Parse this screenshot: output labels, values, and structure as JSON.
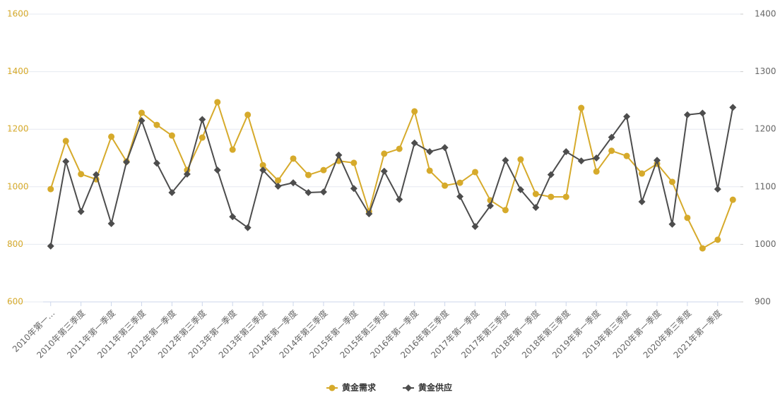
{
  "chart_data": {
    "type": "line",
    "categories": [
      "2010年第一…",
      null,
      "2010年第三季度",
      null,
      "2011年第一季度",
      null,
      "2011年第三季度",
      null,
      "2012年第一季度",
      null,
      "2012年第三季度",
      null,
      "2013年第一季度",
      null,
      "2013年第三季度",
      null,
      "2014年第一季度",
      null,
      "2014年第三季度",
      null,
      "2015年第一季度",
      null,
      "2015年第三季度",
      null,
      "2016年第一季度",
      null,
      "2016年第三季度",
      null,
      "2017年第一季度",
      null,
      "2017年第三季度",
      null,
      "2018年第一季度",
      null,
      "2018年第三季度",
      null,
      "2019年第一季度",
      null,
      "2019年第三季度",
      null,
      "2020年第一季度",
      null,
      "2020年第三季度",
      null,
      "2021年第一季度",
      null
    ],
    "series": [
      {
        "name": "黄金需求",
        "color": "#d6aa2b",
        "marker": "circle",
        "values": [
          992,
          1159,
          1044,
          1026,
          1174,
          1088,
          1257,
          1215,
          1178,
          1058,
          1171,
          1294,
          1129,
          1250,
          1075,
          1022,
          1098,
          1041,
          1058,
          1090,
          1083,
          914,
          1115,
          1132,
          1262,
          1056,
          1004,
          1014,
          1051,
          953,
          919,
          1095,
          975,
          965,
          965,
          1274,
          1053,
          1125,
          1107,
          1046,
          1080,
          1017,
          892,
          786,
          816,
          955
        ]
      },
      {
        "name": "黄金供应",
        "color": "#4d4d4d",
        "marker": "diamond",
        "axis": "y2",
        "values": [
          997,
          1144,
          1057,
          1121,
          1036,
          1143,
          1215,
          1141,
          1090,
          1122,
          1217,
          1129,
          1048,
          1029,
          1129,
          1101,
          1107,
          1090,
          1091,
          1155,
          1097,
          1053,
          1127,
          1078,
          1176,
          1161,
          1168,
          1083,
          1031,
          1067,
          1146,
          1095,
          1064,
          1121,
          1161,
          1145,
          1150,
          1186,
          1222,
          1074,
          1146,
          1035,
          1225,
          1228,
          1096,
          1238
        ]
      }
    ],
    "ylim": [
      600,
      1600
    ],
    "yticks": [
      600,
      800,
      1000,
      1200,
      1400,
      1600
    ],
    "y2lim": [
      900,
      1400
    ],
    "y2ticks": [
      900,
      1000,
      1100,
      1200,
      1300,
      1400
    ],
    "grid": true,
    "legend": "bottom"
  }
}
